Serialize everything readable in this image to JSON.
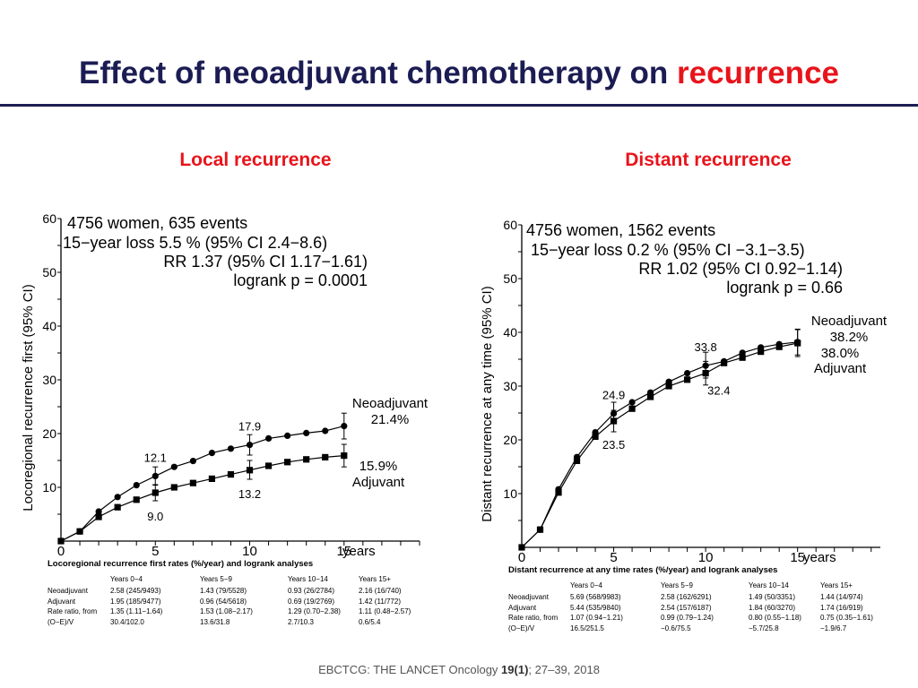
{
  "slide": {
    "title_main": "Effect of neoadjuvant chemotherapy on ",
    "title_highlight": "recurrence",
    "citation_prefix": "EBCTCG: THE LANCET Oncology ",
    "citation_vol": "19(1)",
    "citation_suffix": ";  27–39, 2018"
  },
  "colors": {
    "title": "#1c1c54",
    "accent": "#e8141b",
    "lines": "#000000"
  },
  "chart_data": [
    {
      "type": "line",
      "panel_title": "Local recurrence",
      "ylabel": "Locoregional recurrence first (95% CI)",
      "x_unit": "years",
      "xlim": [
        0,
        19
      ],
      "ylim": [
        0,
        60
      ],
      "xticks": [
        0,
        5,
        10,
        15
      ],
      "yticks": [
        10,
        20,
        30,
        40,
        50,
        60
      ],
      "stats": [
        "4756 women, 635 events",
        "15−year loss  5.5 % (95% CI 2.4−8.6)",
        "RR 1.37 (95% CI 1.17−1.61)",
        "logrank p = 0.0001"
      ],
      "series": [
        {
          "name": "Neoadjuvant",
          "end_label": "21.4%",
          "marker": "circle",
          "x": [
            0,
            1,
            2,
            3,
            4,
            5,
            6,
            7,
            8,
            9,
            10,
            11,
            12,
            13,
            14,
            15
          ],
          "y": [
            0,
            1.8,
            5.5,
            8.2,
            10.4,
            12.1,
            13.8,
            14.9,
            16.4,
            17.2,
            17.9,
            19.1,
            19.6,
            20.1,
            20.5,
            21.4
          ]
        },
        {
          "name": "Adjuvant",
          "end_label": "15.9%",
          "marker": "square",
          "x": [
            0,
            1,
            2,
            3,
            4,
            5,
            6,
            7,
            8,
            9,
            10,
            11,
            12,
            13,
            14,
            15
          ],
          "y": [
            0,
            1.8,
            4.5,
            6.3,
            7.7,
            9.0,
            10.0,
            10.8,
            11.6,
            12.4,
            13.2,
            14.0,
            14.7,
            15.2,
            15.6,
            15.9
          ]
        }
      ],
      "error_bars": [
        {
          "series": 0,
          "x": 5,
          "lo": 10.4,
          "hi": 13.8
        },
        {
          "series": 0,
          "x": 10,
          "lo": 16.0,
          "hi": 19.8
        },
        {
          "series": 0,
          "x": 15,
          "lo": 19.0,
          "hi": 23.8
        },
        {
          "series": 1,
          "x": 5,
          "lo": 7.5,
          "hi": 10.5
        },
        {
          "series": 1,
          "x": 10,
          "lo": 11.5,
          "hi": 15.0
        },
        {
          "series": 1,
          "x": 15,
          "lo": 13.8,
          "hi": 18.0
        }
      ],
      "point_labels": [
        {
          "text": "12.1",
          "x": 5,
          "y": 12.1,
          "pos": "above"
        },
        {
          "text": "9.0",
          "x": 5,
          "y": 9.0,
          "pos": "below"
        },
        {
          "text": "17.9",
          "x": 10,
          "y": 17.9,
          "pos": "above"
        },
        {
          "text": "13.2",
          "x": 10,
          "y": 13.2,
          "pos": "below"
        }
      ],
      "table": {
        "caption": "Locoregional recurrence first rates (%/year) and logrank analyses",
        "headers": [
          "",
          "Years 0−4",
          "Years 5−9",
          "Years 10−14",
          "Years 15+"
        ],
        "rows": [
          [
            "Neoadjuvant",
            "2.58 (245/9493)",
            "1.43 (79/5528)",
            "0.93 (26/2784)",
            "2.16 (16/740)"
          ],
          [
            "Adjuvant",
            "1.95 (185/9477)",
            "0.96 (54/5618)",
            "0.69 (19/2769)",
            "1.42 (11/772)"
          ],
          [
            "Rate ratio, from",
            "1.35 (1.11−1.64)",
            "1.53 (1.08−2.17)",
            "1.29 (0.70−2.38)",
            "1.11 (0.48−2.57)"
          ],
          [
            "(O−E)/V",
            "30.4/102.0",
            "13.6/31.8",
            "2.7/10.3",
            "0.6/5.4"
          ]
        ]
      }
    },
    {
      "type": "line",
      "panel_title": "Distant recurrence",
      "ylabel": "Distant recurrence at any time (95% CI)",
      "x_unit": "years",
      "xlim": [
        0,
        19.5
      ],
      "ylim": [
        0,
        60
      ],
      "xticks": [
        0,
        5,
        10,
        15
      ],
      "yticks": [
        10,
        20,
        30,
        40,
        50,
        60
      ],
      "stats": [
        "4756 women, 1562 events",
        "15−year loss  0.2 % (95% CI −3.1−3.5)",
        "RR 1.02 (95% CI 0.92−1.14)",
        "logrank p = 0.66"
      ],
      "series": [
        {
          "name": "Neoadjuvant",
          "end_label": "38.2%",
          "marker": "circle",
          "x": [
            0,
            1,
            2,
            3,
            4,
            5,
            6,
            7,
            8,
            9,
            10,
            11,
            12,
            13,
            14,
            15
          ],
          "y": [
            0,
            3.3,
            10.8,
            16.8,
            21.4,
            24.9,
            27.0,
            28.8,
            30.8,
            32.4,
            33.8,
            34.6,
            36.2,
            37.2,
            37.8,
            38.2
          ]
        },
        {
          "name": "Adjuvant",
          "end_label": "38.0%",
          "marker": "square",
          "x": [
            0,
            1,
            2,
            3,
            4,
            5,
            6,
            7,
            8,
            9,
            10,
            11,
            12,
            13,
            14,
            15
          ],
          "y": [
            0,
            3.3,
            10.2,
            16.1,
            20.6,
            23.5,
            25.8,
            28.0,
            30.0,
            31.2,
            32.4,
            34.3,
            35.3,
            36.4,
            37.3,
            38.0
          ]
        }
      ],
      "error_bars": [
        {
          "series": 0,
          "x": 5,
          "lo": 23.0,
          "hi": 27.0
        },
        {
          "series": 0,
          "x": 10,
          "lo": 31.5,
          "hi": 36.3
        },
        {
          "series": 0,
          "x": 15,
          "lo": 35.8,
          "hi": 40.6
        },
        {
          "series": 1,
          "x": 5,
          "lo": 21.5,
          "hi": 25.5
        },
        {
          "series": 1,
          "x": 10,
          "lo": 30.2,
          "hi": 34.6
        },
        {
          "series": 1,
          "x": 15,
          "lo": 35.5,
          "hi": 40.5
        }
      ],
      "point_labels": [
        {
          "text": "24.9",
          "x": 5,
          "y": 24.9,
          "pos": "above"
        },
        {
          "text": "23.5",
          "x": 5,
          "y": 23.5,
          "pos": "below"
        },
        {
          "text": "33.8",
          "x": 10,
          "y": 33.8,
          "pos": "above"
        },
        {
          "text": "32.4",
          "x": 10,
          "y": 32.4,
          "pos": "below-right"
        }
      ],
      "table": {
        "caption": "Distant recurrence at any time rates (%/year) and logrank analyses",
        "headers": [
          "",
          "Years 0−4",
          "Years 5−9",
          "Years 10−14",
          "Years 15+"
        ],
        "rows": [
          [
            "Neoadjuvant",
            "5.69 (568/9983)",
            "2.58 (162/6291)",
            "1.49 (50/3351)",
            "1.44 (14/974)"
          ],
          [
            "Adjuvant",
            "5.44 (535/9840)",
            "2.54 (157/6187)",
            "1.84 (60/3270)",
            "1.74 (16/919)"
          ],
          [
            "Rate ratio, from",
            "1.07 (0.94−1.21)",
            "0.99 (0.79−1.24)",
            "0.80 (0.55−1.18)",
            "0.75 (0.35−1.61)"
          ],
          [
            "(O−E)/V",
            "16.5/251.5",
            "−0.6/75.5",
            "−5.7/25.8",
            "−1.9/6.7"
          ]
        ]
      }
    }
  ]
}
